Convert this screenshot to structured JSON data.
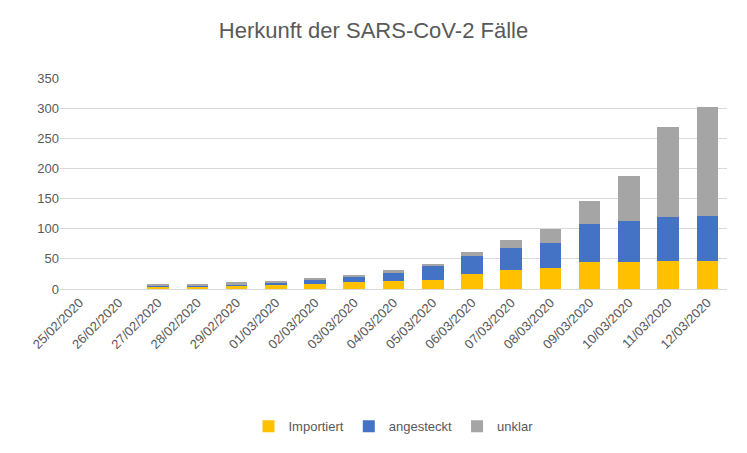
{
  "chart_data": {
    "type": "bar",
    "title": "Herkunft der SARS-CoV-2 Fälle",
    "categories": [
      "25/02/2020",
      "26/02/2020",
      "27/02/2020",
      "28/02/2020",
      "29/02/2020",
      "01/03/2020",
      "02/03/2020",
      "03/03/2020",
      "04/03/2020",
      "05/03/2020",
      "06/03/2020",
      "07/03/2020",
      "08/03/2020",
      "09/03/2020",
      "10/03/2020",
      "11/03/2020",
      "12/03/2020"
    ],
    "series": [
      {
        "name": "Importiert",
        "color": "#ffc000",
        "values": [
          0,
          0,
          4,
          4,
          5,
          7,
          9,
          12,
          13,
          15,
          25,
          32,
          35,
          45,
          45,
          47,
          47
        ]
      },
      {
        "name": "angesteckt",
        "color": "#4472c4",
        "values": [
          0,
          0,
          1,
          2,
          3,
          3,
          7,
          9,
          14,
          23,
          29,
          36,
          42,
          63,
          68,
          73,
          74
        ]
      },
      {
        "name": "unklar",
        "color": "#a5a5a5",
        "values": [
          0,
          0,
          3,
          3,
          3,
          3,
          2,
          3,
          4,
          4,
          7,
          13,
          22,
          38,
          74,
          148,
          181
        ]
      }
    ],
    "ylim": [
      0,
      350
    ],
    "yticks": [
      0,
      50,
      100,
      150,
      200,
      250,
      300,
      350
    ],
    "stacked": true,
    "grid": true,
    "legend": "bottom"
  }
}
